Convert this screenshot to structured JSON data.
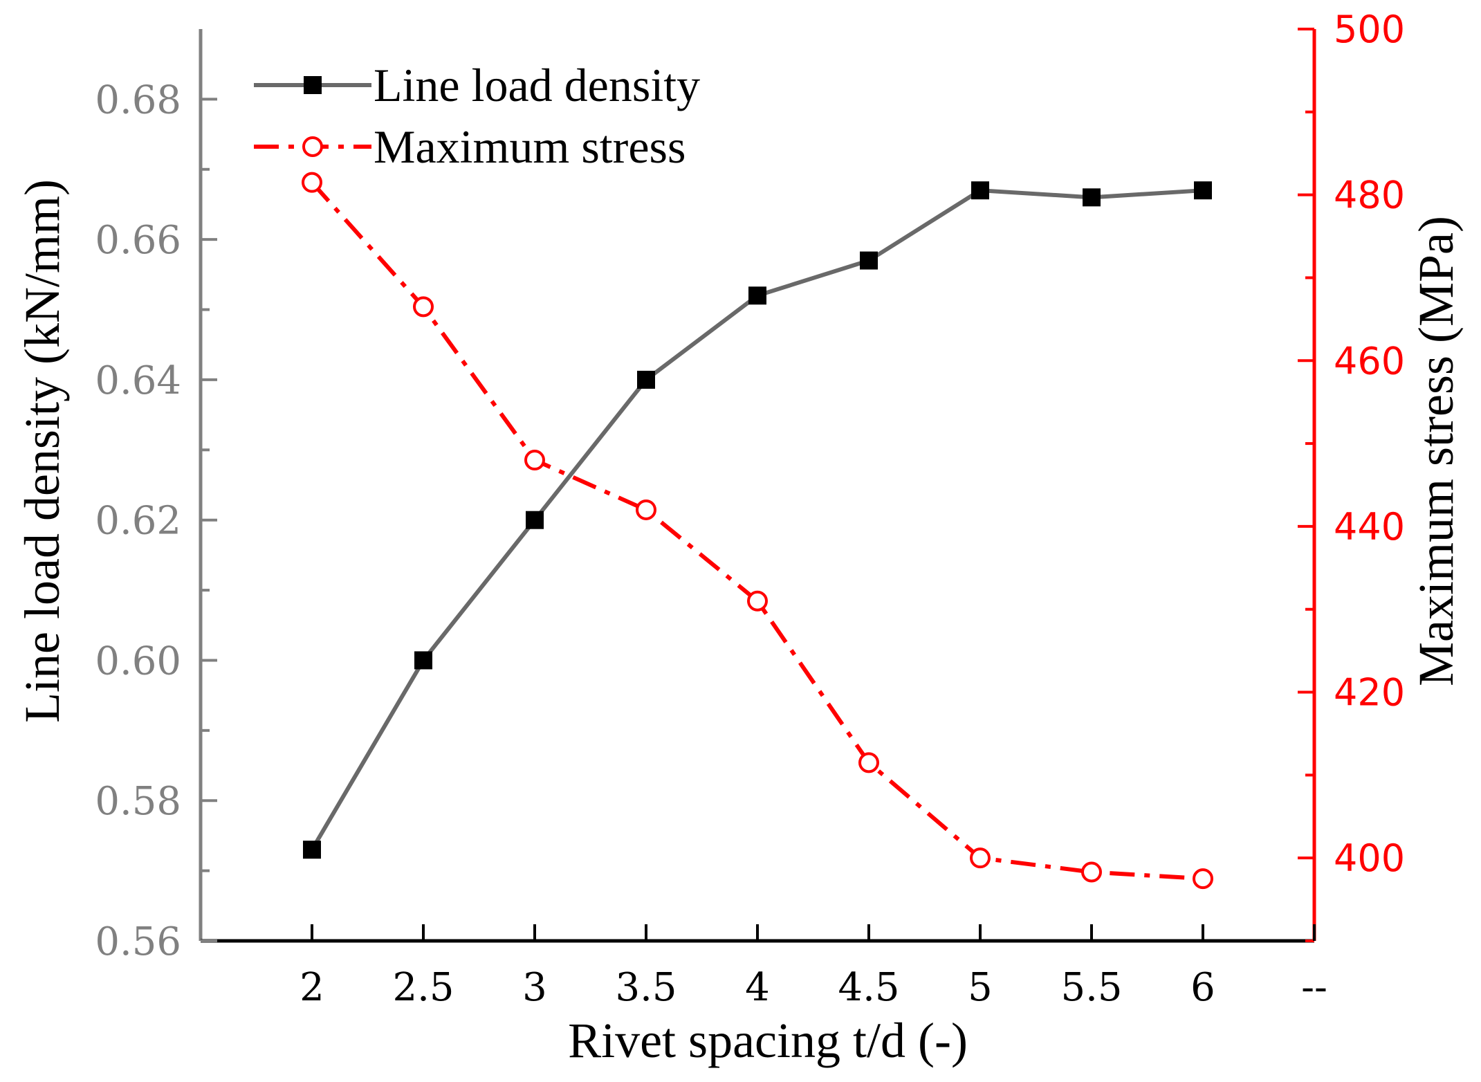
{
  "chart_data": {
    "type": "line",
    "x": [
      2,
      2.5,
      3,
      3.5,
      4,
      4.5,
      5,
      5.5,
      6
    ],
    "x_tick_labels": [
      "2",
      "2.5",
      "3",
      "3.5",
      "4",
      "4.5",
      "5",
      "5.5",
      "6",
      "--"
    ],
    "x_tick_values": [
      2,
      2.5,
      3,
      3.5,
      4,
      4.5,
      5,
      5.5,
      6,
      6.5
    ],
    "xlim": [
      1.5,
      6.5
    ],
    "xlabel": "Rivet spacing t/d (-)",
    "y_left": {
      "label": "Line load density (kN/mm)",
      "lim": [
        0.56,
        0.69
      ],
      "ticks": [
        0.56,
        0.58,
        0.6,
        0.62,
        0.64,
        0.66,
        0.68
      ],
      "tick_labels": [
        "0.56",
        "0.58",
        "0.60",
        "0.62",
        "0.64",
        "0.66",
        "0.68"
      ],
      "color": "#808080"
    },
    "y_right": {
      "label": "Maximum stress (MPa)",
      "lim": [
        390,
        500
      ],
      "ticks": [
        400,
        420,
        440,
        460,
        480,
        500
      ],
      "tick_labels": [
        "400",
        "420",
        "440",
        "460",
        "480",
        "500"
      ],
      "color": "#ff0000"
    },
    "series": [
      {
        "name": "Line load density",
        "axis": "left",
        "color": "#696969",
        "line_style": "solid",
        "marker": "filled-square",
        "values": [
          0.573,
          0.6,
          0.62,
          0.64,
          0.652,
          0.657,
          0.667,
          0.666,
          0.667
        ]
      },
      {
        "name": "Maximum stress",
        "axis": "right",
        "color": "#ff0000",
        "line_style": "dash-dot",
        "marker": "open-circle",
        "values": [
          481.5,
          466.5,
          448.0,
          442.0,
          431.0,
          411.5,
          400.0,
          398.3,
          397.5
        ]
      }
    ],
    "legend": {
      "position": "top-left",
      "entries": [
        "Line load density",
        "Maximum stress"
      ]
    }
  }
}
